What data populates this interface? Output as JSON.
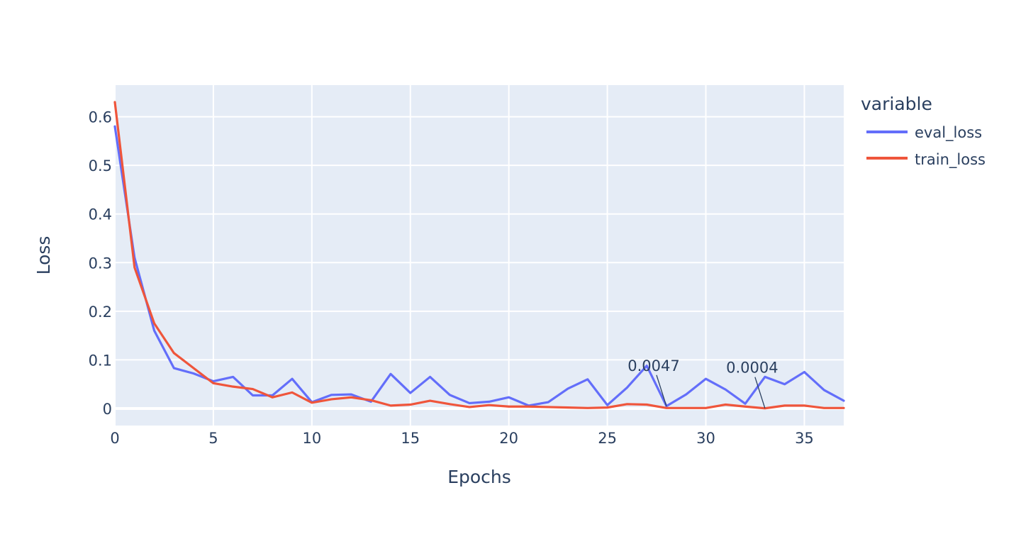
{
  "chart_data": {
    "type": "line",
    "xlabel": "Epochs",
    "ylabel": "Loss",
    "xlim": [
      0,
      37
    ],
    "ylim": [
      -0.035,
      0.665
    ],
    "x_ticks": [
      0,
      5,
      10,
      15,
      20,
      25,
      30,
      35
    ],
    "y_ticks": [
      0,
      0.1,
      0.2,
      0.3,
      0.4,
      0.5,
      0.6
    ],
    "y_tick_labels": [
      "0",
      "0.1",
      "0.2",
      "0.3",
      "0.4",
      "0.5",
      "0.6"
    ],
    "grid": true,
    "legend": {
      "title": "variable",
      "placement": "right"
    },
    "x": [
      0,
      1,
      2,
      3,
      4,
      5,
      6,
      7,
      8,
      9,
      10,
      11,
      12,
      13,
      14,
      15,
      16,
      17,
      18,
      19,
      20,
      21,
      22,
      23,
      24,
      25,
      26,
      27,
      28,
      29,
      30,
      31,
      32,
      33,
      34,
      35,
      36,
      37
    ],
    "series": [
      {
        "name": "eval_loss",
        "color": "#636efa",
        "values": [
          0.58,
          0.31,
          0.16,
          0.083,
          0.072,
          0.056,
          0.065,
          0.027,
          0.027,
          0.061,
          0.013,
          0.028,
          0.029,
          0.014,
          0.071,
          0.032,
          0.065,
          0.028,
          0.011,
          0.014,
          0.023,
          0.006,
          0.013,
          0.041,
          0.06,
          0.007,
          0.043,
          0.088,
          0.005,
          0.029,
          0.061,
          0.039,
          0.01,
          0.065,
          0.05,
          0.075,
          0.038,
          0.016
        ]
      },
      {
        "name": "train_loss",
        "color": "#ef553b",
        "values": [
          0.63,
          0.29,
          0.175,
          0.114,
          0.083,
          0.052,
          0.045,
          0.04,
          0.023,
          0.033,
          0.012,
          0.019,
          0.023,
          0.017,
          0.006,
          0.008,
          0.016,
          0.009,
          0.003,
          0.007,
          0.004,
          0.004,
          0.003,
          0.002,
          0.001,
          0.002,
          0.009,
          0.008,
          0.001,
          0.001,
          0.001,
          0.008,
          0.004,
          0.0004,
          0.006,
          0.006,
          0.001,
          0.001
        ]
      }
    ],
    "annotations": [
      {
        "text": "0.0047",
        "x": 28,
        "y": 0.0047
      },
      {
        "text": "0.0004",
        "x": 33,
        "y": 0.0004
      }
    ]
  }
}
